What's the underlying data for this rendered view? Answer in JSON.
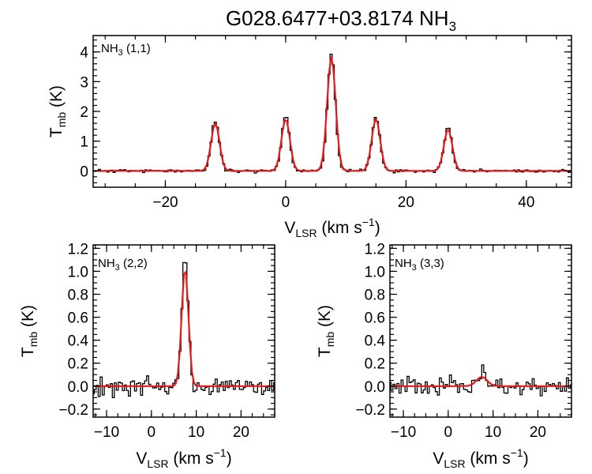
{
  "figure": {
    "title_main": "G028.6477+03.8174 NH",
    "title_sub": "3"
  },
  "chart_data": [
    {
      "type": "line",
      "id": "nh3_11",
      "panel_label": {
        "main": "NH",
        "sub": "3",
        "rest": " (1,1)"
      },
      "xlabel": {
        "main": "V",
        "sub": "LSR",
        "rest": " (km s",
        "sup": "−1",
        "end": ")"
      },
      "ylabel": {
        "main": "T",
        "sub": "mb",
        "rest": " (K)"
      },
      "xlim": [
        -32,
        47.5
      ],
      "ylim": [
        -0.55,
        4.55
      ],
      "xticks": [
        -20,
        0,
        20,
        40
      ],
      "xtick_labels": [
        "−20",
        "0",
        "20",
        "40"
      ],
      "yticks": [
        0,
        1,
        2,
        3,
        4
      ],
      "ytick_labels": [
        "0",
        "1",
        "2",
        "3",
        "4"
      ],
      "series": [
        {
          "role": "observed",
          "color": "#000000",
          "style": "step"
        },
        {
          "role": "fit",
          "color": "#e31a1c",
          "style": "line"
        }
      ],
      "peaks": [
        {
          "x": -11.7,
          "observed": 1.7,
          "fit": 1.6
        },
        {
          "x": 0.0,
          "observed": 1.85,
          "fit": 1.75
        },
        {
          "x": 7.6,
          "observed": 3.9,
          "fit": 3.85
        },
        {
          "x": 15.0,
          "observed": 1.8,
          "fit": 1.75
        },
        {
          "x": 27.0,
          "observed": 1.45,
          "fit": 1.4
        }
      ],
      "line_width_kms": 0.7,
      "noise_rms": 0.025
    },
    {
      "type": "line",
      "id": "nh3_22",
      "panel_label": {
        "main": "NH",
        "sub": "3",
        "rest": " (2,2)"
      },
      "xlabel": {
        "main": "V",
        "sub": "LSR",
        "rest": " (km s",
        "sup": "−1",
        "end": ")"
      },
      "ylabel": {
        "main": "T",
        "sub": "mb",
        "rest": " (K)"
      },
      "xlim": [
        -13,
        27.5
      ],
      "ylim": [
        -0.27,
        1.23
      ],
      "xticks": [
        -10,
        0,
        10,
        20
      ],
      "xtick_labels": [
        "−10",
        "0",
        "10",
        "20"
      ],
      "yticks": [
        -0.2,
        0.0,
        0.2,
        0.4,
        0.6,
        0.8,
        1.0,
        1.2
      ],
      "ytick_labels": [
        "−0.2",
        "0.0",
        "0.2",
        "0.4",
        "0.6",
        "0.8",
        "1.0",
        "1.2"
      ],
      "series": [
        {
          "role": "observed",
          "color": "#000000",
          "style": "step"
        },
        {
          "role": "fit",
          "color": "#e31a1c",
          "style": "line"
        }
      ],
      "peaks": [
        {
          "x": 7.5,
          "observed": 1.08,
          "fit": 1.03
        }
      ],
      "line_width_kms": 0.75,
      "noise_rms": 0.035
    },
    {
      "type": "line",
      "id": "nh3_33",
      "panel_label": {
        "main": "NH",
        "sub": "3",
        "rest": " (3,3)"
      },
      "xlabel": {
        "main": "V",
        "sub": "LSR",
        "rest": " (km s",
        "sup": "−1",
        "end": ")"
      },
      "ylabel": {
        "main": "T",
        "sub": "mb",
        "rest": " (K)"
      },
      "xlim": [
        -13,
        27.5
      ],
      "ylim": [
        -0.27,
        1.23
      ],
      "xticks": [
        -10,
        0,
        10,
        20
      ],
      "xtick_labels": [
        "−10",
        "0",
        "10",
        "20"
      ],
      "yticks": [
        -0.2,
        0.0,
        0.2,
        0.4,
        0.6,
        0.8,
        1.0,
        1.2
      ],
      "ytick_labels": [
        "−0.2",
        "0.0",
        "0.2",
        "0.4",
        "0.6",
        "0.8",
        "1.0",
        "1.2"
      ],
      "series": [
        {
          "role": "observed",
          "color": "#000000",
          "style": "step"
        },
        {
          "role": "fit",
          "color": "#e31a1c",
          "style": "line"
        }
      ],
      "peaks": [
        {
          "x": 7.5,
          "observed": 0.13,
          "fit": 0.08
        }
      ],
      "line_width_kms": 1.2,
      "noise_rms": 0.035
    }
  ]
}
